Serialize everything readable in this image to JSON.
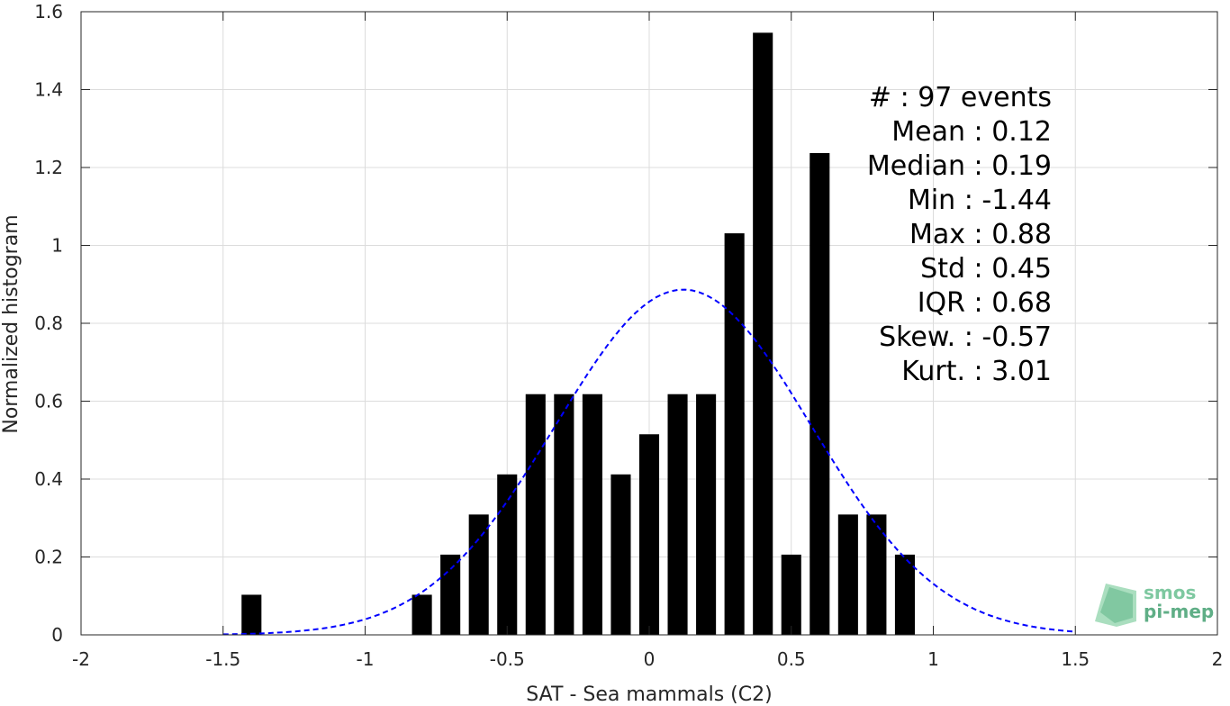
{
  "chart_data": {
    "type": "bar",
    "xlabel": "SAT - Sea mammals (C2)",
    "ylabel": "Normalized histogram",
    "xlim": [
      -2,
      2
    ],
    "ylim": [
      0,
      1.6
    ],
    "grid": true,
    "x_ticks": [
      "-2",
      "-1.5",
      "-1",
      "-0.5",
      "0",
      "0.5",
      "1",
      "1.5",
      "2"
    ],
    "y_ticks": [
      "0",
      "0.2",
      "0.4",
      "0.6",
      "0.8",
      "1",
      "1.2",
      "1.4",
      "1.6"
    ],
    "bar_width": 0.07,
    "bars": [
      {
        "x": -1.4,
        "y": 0.103
      },
      {
        "x": -0.8,
        "y": 0.103
      },
      {
        "x": -0.7,
        "y": 0.206
      },
      {
        "x": -0.6,
        "y": 0.309
      },
      {
        "x": -0.5,
        "y": 0.412
      },
      {
        "x": -0.4,
        "y": 0.618
      },
      {
        "x": -0.3,
        "y": 0.618
      },
      {
        "x": -0.2,
        "y": 0.618
      },
      {
        "x": -0.1,
        "y": 0.412
      },
      {
        "x": 0.0,
        "y": 0.515
      },
      {
        "x": 0.1,
        "y": 0.618
      },
      {
        "x": 0.2,
        "y": 0.618
      },
      {
        "x": 0.3,
        "y": 1.031
      },
      {
        "x": 0.4,
        "y": 1.546
      },
      {
        "x": 0.5,
        "y": 0.206
      },
      {
        "x": 0.6,
        "y": 1.237
      },
      {
        "x": 0.7,
        "y": 0.309
      },
      {
        "x": 0.8,
        "y": 0.309
      },
      {
        "x": 0.9,
        "y": 0.206
      }
    ],
    "fit_curve": {
      "style": "dashed",
      "color": "#0000ff",
      "mean": 0.12,
      "std": 0.45,
      "x_range": [
        -1.5,
        1.5
      ]
    },
    "bar_color": "#000000",
    "stats_lines": [
      "#  : 97 events",
      "Mean : 0.12",
      "Median : 0.19",
      "Min : -1.44",
      "Max : 0.88",
      "Std : 0.45",
      "IQR : 0.68",
      "Skew. : -0.57",
      "Kurt. : 3.01"
    ]
  },
  "logo": {
    "line1": "smos",
    "line2": "pi-mep",
    "color1": "#7ec8a0",
    "color2": "#5fae86"
  }
}
